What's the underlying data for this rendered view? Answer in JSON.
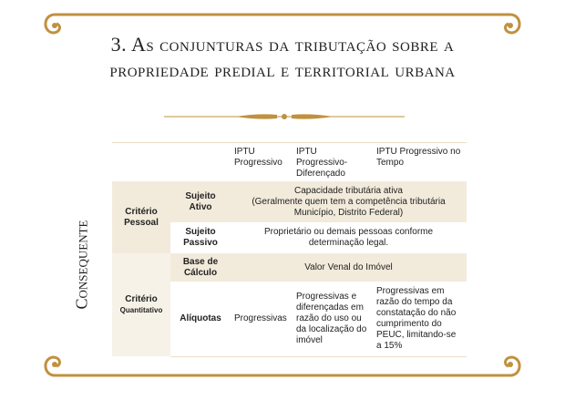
{
  "title": "3. As conjunturas da tributação sobre a propriedade predial e territorial urbana",
  "side_label": "Consequente",
  "colors": {
    "gold": "#c0913f",
    "beige": "#f2ebdc"
  },
  "table": {
    "headers": [
      "IPTU Progressivo",
      "IPTU Progressivo-Diferençado",
      "IPTU Progressivo no Tempo"
    ],
    "groups": {
      "pessoal": "Critério Pessoal",
      "quantitativo": "Critério",
      "quantitativo_sub": "Quantitativo"
    },
    "rows": [
      {
        "label": "Sujeito Ativo",
        "line1": "Capacidade tributária ativa",
        "line2": "(Geralmente quem tem a competência tributária",
        "line3": "Município, Distrito Federal)"
      },
      {
        "label": "Sujeito Passivo",
        "line1": "Proprietário ou demais pessoas conforme",
        "line2": "determinação legal."
      },
      {
        "label": "Base de Cálculo",
        "value": "Valor Venal do Imóvel"
      },
      {
        "label": "Alíquotas",
        "values": [
          "Progressivas",
          "Progressivas e diferençadas em razão do uso ou da localização do imóvel",
          "Progressivas em razão do tempo da constatação do não cumprimento do PEUC, limitando-se a 15%"
        ]
      }
    ]
  }
}
